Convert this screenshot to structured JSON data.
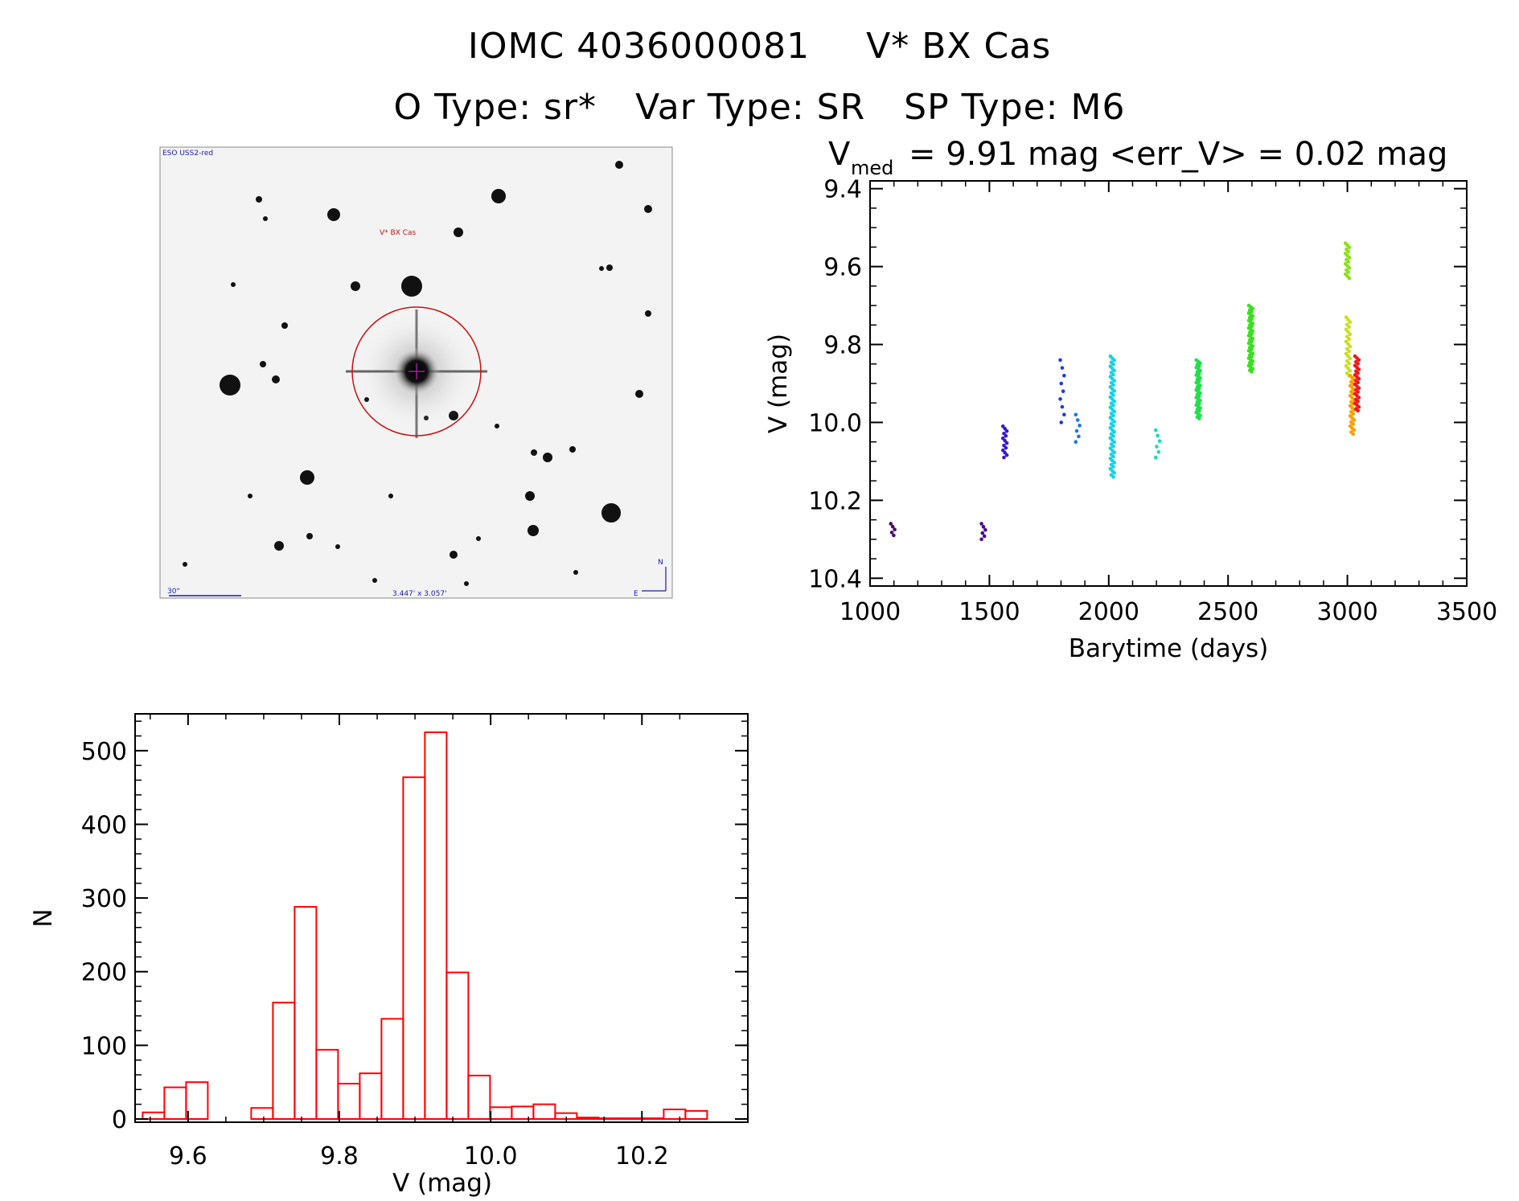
{
  "header": {
    "star_id": "IOMC 4036000081",
    "star_name": "V* BX Cas",
    "object_type": "O Type: sr*",
    "var_type": "Var Type: SR",
    "sp_type": "SP Type: M6"
  },
  "finder": {
    "survey_label": "ESO USS2-red",
    "target_label": "V* BX Cas",
    "scale_label": "30\"",
    "fov_label": "3.447' x 3.057'",
    "north_label": "N",
    "east_label": "E"
  },
  "chart_data": [
    {
      "type": "scatter",
      "title_main": "V",
      "title_sub": "med",
      "title_rest": "= 9.91 mag <err_V> = 0.02 mag",
      "xlabel": "Barytime (days)",
      "ylabel": "V (mag)",
      "xlim": [
        1000,
        3500
      ],
      "ylim": [
        10.42,
        9.38
      ],
      "xticks": [
        1000,
        1500,
        2000,
        2500,
        3000,
        3500
      ],
      "yticks": [
        9.4,
        9.6,
        9.8,
        10.0,
        10.2,
        10.4
      ],
      "xtick_labels": [
        "1000",
        "1500",
        "2000",
        "2500",
        "3000",
        "3500"
      ],
      "ytick_labels": [
        "9.4",
        "9.6",
        "9.8",
        "10.0",
        "10.2",
        "10.4"
      ],
      "groups": [
        {
          "x": 1095,
          "ymin": 10.26,
          "ymax": 10.29,
          "n": 5,
          "color": "#4b0a6e"
        },
        {
          "x": 1475,
          "ymin": 10.26,
          "ymax": 10.3,
          "n": 6,
          "color": "#4b0a8c"
        },
        {
          "x": 1565,
          "ymin": 10.01,
          "ymax": 10.09,
          "n": 14,
          "color": "#3a18c8"
        },
        {
          "x": 1805,
          "ymin": 9.84,
          "ymax": 10.0,
          "n": 9,
          "color": "#1a3ce0"
        },
        {
          "x": 1870,
          "ymin": 9.98,
          "ymax": 10.05,
          "n": 6,
          "color": "#1a78e6"
        },
        {
          "x": 2015,
          "ymin": 9.83,
          "ymax": 10.14,
          "n": 60,
          "color": "#14d2e6"
        },
        {
          "x": 2205,
          "ymin": 10.02,
          "ymax": 10.09,
          "n": 6,
          "color": "#10e0b0"
        },
        {
          "x": 2375,
          "ymin": 9.84,
          "ymax": 9.99,
          "n": 40,
          "color": "#20e04a"
        },
        {
          "x": 2595,
          "ymin": 9.7,
          "ymax": 9.87,
          "n": 45,
          "color": "#3ae020"
        },
        {
          "x": 3000,
          "ymin": 9.54,
          "ymax": 9.63,
          "n": 18,
          "color": "#8ce01a"
        },
        {
          "x": 3003,
          "ymin": 9.73,
          "ymax": 9.88,
          "n": 25,
          "color": "#c8e01a"
        },
        {
          "x": 3020,
          "ymin": 9.88,
          "ymax": 10.03,
          "n": 30,
          "color": "#f5a000"
        },
        {
          "x": 3040,
          "ymin": 9.83,
          "ymax": 9.97,
          "n": 30,
          "color": "#f01818"
        }
      ]
    },
    {
      "type": "histogram",
      "xlabel": "V (mag)",
      "ylabel": "N",
      "xlim": [
        9.53,
        10.34
      ],
      "ylim": [
        0,
        550
      ],
      "xticks": [
        9.6,
        9.8,
        10.0,
        10.2
      ],
      "xtick_labels": [
        "9.6",
        "9.8",
        "10.0",
        "10.2"
      ],
      "yticks": [
        0,
        100,
        200,
        300,
        400,
        500
      ],
      "ytick_labels": [
        "0",
        "100",
        "200",
        "300",
        "400",
        "500"
      ],
      "bin_start": 9.54,
      "bin_width": 0.0287,
      "color": "#ff0000",
      "counts": [
        9,
        43,
        50,
        0,
        0,
        15,
        158,
        288,
        94,
        48,
        62,
        136,
        464,
        525,
        199,
        59,
        16,
        17,
        20,
        8,
        2,
        1,
        1,
        1,
        13,
        11
      ]
    }
  ]
}
